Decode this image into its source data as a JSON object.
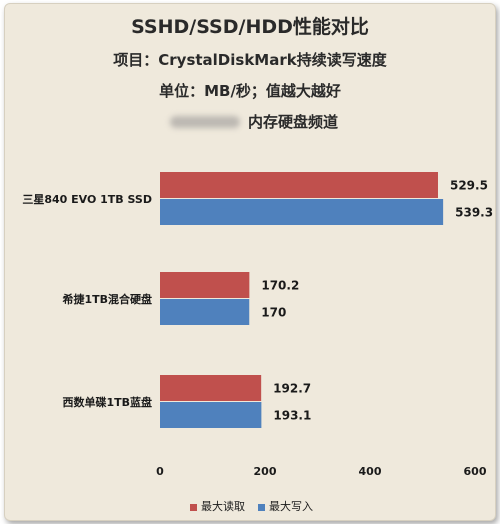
{
  "chart_data": {
    "type": "bar",
    "orientation": "horizontal",
    "title": "SSHD/SSD/HDD性能对比",
    "subtitle_1": "项目：CrystalDiskMark持续读写速度",
    "subtitle_2": "单位：MB/秒；值越大越好",
    "subtitle_3": "内存硬盘频道",
    "categories": [
      "三星840 EVO 1TB SSD",
      "希捷1TB混合硬盘",
      "西数单碟1TB蓝盘"
    ],
    "series": [
      {
        "name": "最大读取",
        "values": [
          529.5,
          170.2,
          192.7
        ],
        "color": "#c0504d"
      },
      {
        "name": "最大写入",
        "values": [
          539.3,
          170,
          193.1
        ],
        "color": "#4f81bd"
      }
    ],
    "value_labels": [
      [
        "529.5",
        "170.2",
        "192.7"
      ],
      [
        "539.3",
        "170",
        "193.1"
      ]
    ],
    "xlim": [
      0,
      600
    ],
    "xticks": [
      "0",
      "200",
      "400",
      "600"
    ],
    "grid": false,
    "legend_position": "bottom"
  }
}
